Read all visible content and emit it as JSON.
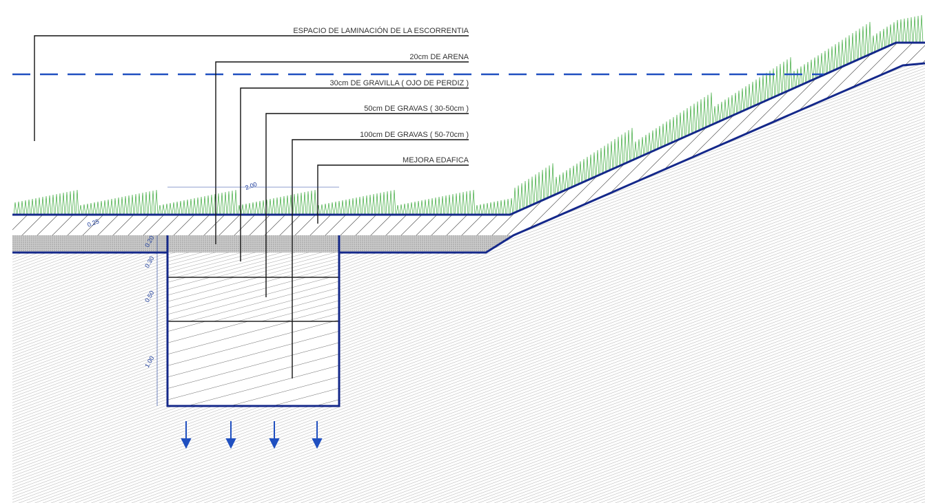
{
  "labels": [
    "ESPACIO DE LAMINACIÓN DE LA ESCORRENTIA",
    "20cm DE ARENA",
    "30cm DE GRAVILLA ( OJO DE PERDIZ )",
    "50cm DE GRAVAS ( 30-50cm )",
    "100cm DE GRAVAS ( 50-70cm )",
    "MEJORA EDAFICA"
  ],
  "dimensions": {
    "width": "2.00",
    "topsoil": "0.25",
    "sand": "0.20",
    "gravilla": "0.30",
    "gravas_small": "0.50",
    "gravas_large": "1.00"
  }
}
